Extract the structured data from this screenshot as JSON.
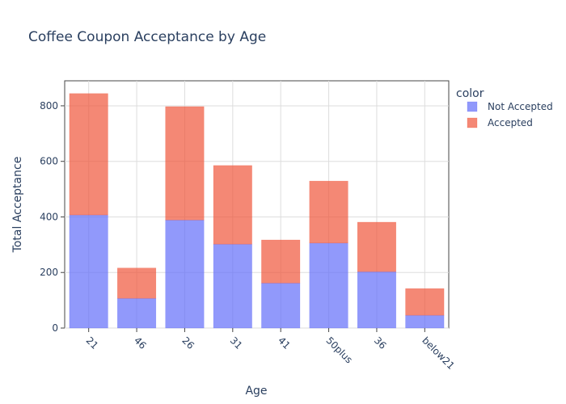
{
  "chart_data": {
    "type": "bar",
    "barmode": "stack",
    "title": "Coffee Coupon Acceptance by Age",
    "xlabel": "Age",
    "ylabel": "Total Acceptance",
    "categories": [
      "21",
      "46",
      "26",
      "31",
      "41",
      "50plus",
      "36",
      "below21"
    ],
    "series": [
      {
        "name": "Not Accepted",
        "color": "#636efa",
        "values": [
          407,
          107,
          389,
          302,
          162,
          306,
          203,
          46
        ]
      },
      {
        "name": "Accepted",
        "color": "#ef553b",
        "values": [
          437,
          109,
          408,
          283,
          155,
          223,
          178,
          96
        ]
      }
    ],
    "ylim": [
      0,
      890
    ],
    "yticks": [
      0,
      200,
      400,
      600,
      800
    ],
    "grid": true,
    "legend": {
      "title": "color",
      "placement": "top-right"
    }
  }
}
